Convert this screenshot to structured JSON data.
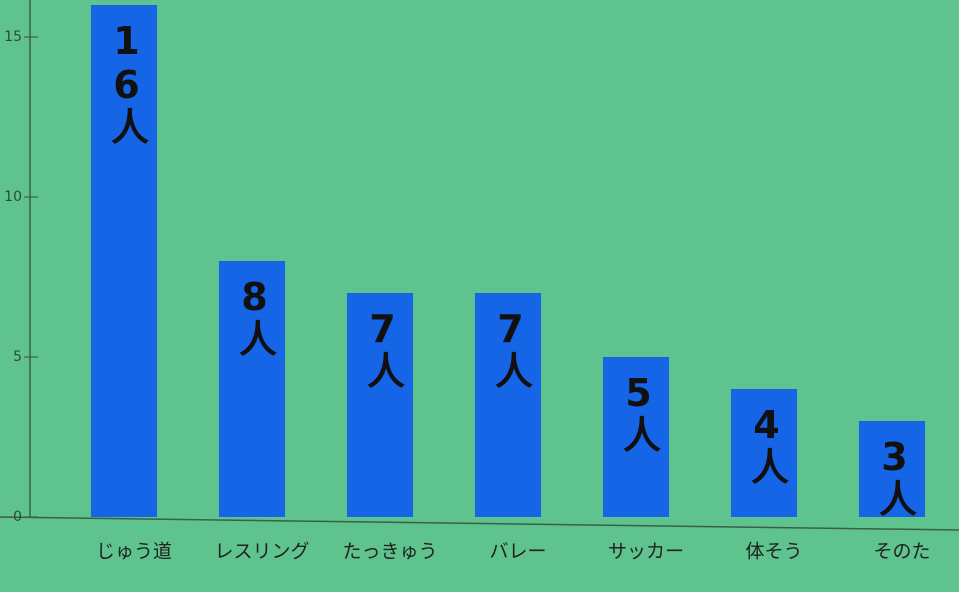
{
  "chart_data": {
    "type": "bar",
    "categories": [
      "じゅう道",
      "レスリング",
      "たっきゅう",
      "バレー",
      "サッカー",
      "体そう",
      "そのた"
    ],
    "values": [
      16,
      8,
      7,
      7,
      5,
      4,
      3
    ],
    "value_labels": [
      "16人",
      "8人",
      "7人",
      "7人",
      "5人",
      "4人",
      "3人"
    ],
    "color": "#1565e6",
    "ylim": [
      0,
      16
    ],
    "yticks": [
      0,
      5,
      10,
      15
    ],
    "grid": false
  }
}
